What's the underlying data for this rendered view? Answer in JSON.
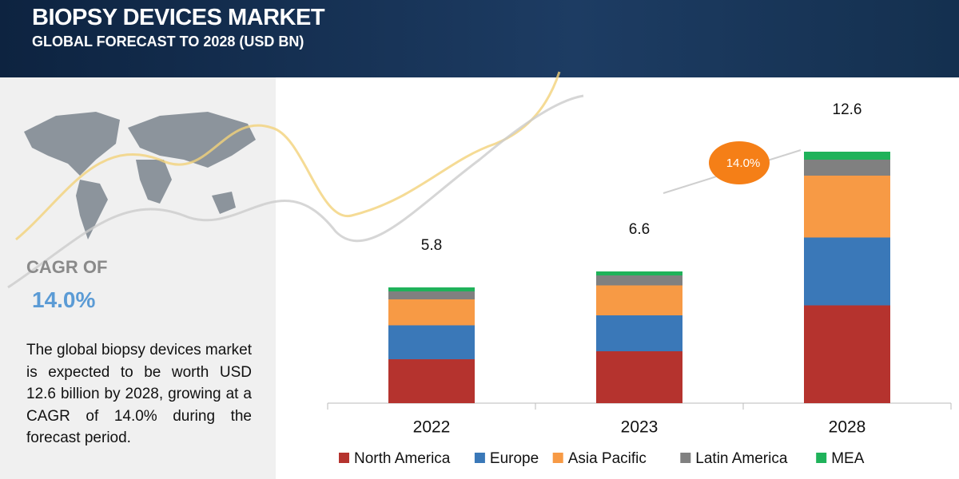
{
  "header": {
    "title": "BIOPSY DEVICES MARKET",
    "subtitle": "GLOBAL FORECAST TO 2028 (USD BN)"
  },
  "panel": {
    "cagr_label": "CAGR OF",
    "cagr_value": "14.0%",
    "text": "The global biopsy devices market is expected to be worth USD 12.6 billion by 2028, growing at a CAGR of 14.0% during the forecast period."
  },
  "chart_data": {
    "type": "stacked_bar",
    "categories": [
      "2022",
      "2023",
      "2028"
    ],
    "series": [
      {
        "name": "North America",
        "color": "#b5332e",
        "values": [
          2.2,
          2.6,
          4.9
        ]
      },
      {
        "name": "Europe",
        "color": "#3a78b8",
        "values": [
          1.7,
          1.8,
          3.4
        ]
      },
      {
        "name": "Asia Pacific",
        "color": "#f79a45",
        "values": [
          1.3,
          1.5,
          3.1
        ]
      },
      {
        "name": "Latin America",
        "color": "#808080",
        "values": [
          0.4,
          0.5,
          0.8
        ]
      },
      {
        "name": "MEA",
        "color": "#1fb25a",
        "values": [
          0.2,
          0.2,
          0.4
        ]
      }
    ],
    "totals": [
      5.8,
      6.6,
      12.6
    ],
    "annotation": "14.0%",
    "ylim": [
      0,
      13
    ],
    "legend": "bottom"
  }
}
